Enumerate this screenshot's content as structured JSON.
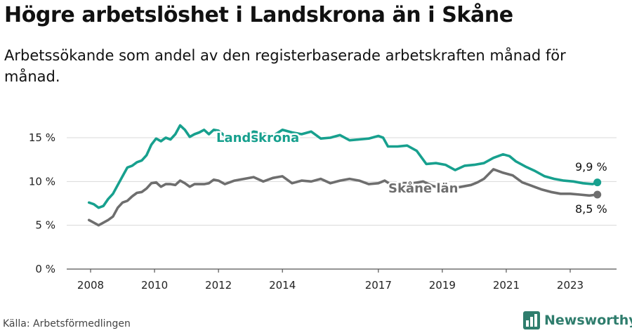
{
  "title": "Högre arbetslöshet i Landskrona än i Skåne",
  "subtitle": "Arbetssökande som andel av den registerbaserade arbetskraften månad för månad.",
  "source": "Källa: Arbetsförmedlingen",
  "brand": {
    "name": "Newsworthy",
    "icon": "newsworthy-logo-icon",
    "color": "#2f7d6d"
  },
  "colors": {
    "landskrona": "#17a08e",
    "skane": "#6e6e6e",
    "grid": "#d9d9d9",
    "axis": "#555555"
  },
  "chart_data": {
    "type": "line",
    "title": "Högre arbetslöshet i Landskrona än i Skåne",
    "xlabel": "",
    "ylabel": "",
    "xlim": [
      2007.6,
      2024.8
    ],
    "ylim": [
      0,
      16.5
    ],
    "yticks": [
      0,
      5,
      10,
      15
    ],
    "ytick_labels": [
      "0 %",
      "5 %",
      "10 %",
      "15 %"
    ],
    "xticks": [
      2008,
      2010,
      2012,
      2014,
      2017,
      2019,
      2021,
      2023
    ],
    "xtick_labels": [
      "2008",
      "2010",
      "2012",
      "2014",
      "2017",
      "2019",
      "2021",
      "2023"
    ],
    "grid": true,
    "series": [
      {
        "name": "Landskrona",
        "end_label": "9,9 %",
        "x": [
          2007.95,
          2008.1,
          2008.25,
          2008.4,
          2008.55,
          2008.7,
          2008.85,
          2009.0,
          2009.15,
          2009.3,
          2009.45,
          2009.6,
          2009.75,
          2009.9,
          2010.05,
          2010.2,
          2010.35,
          2010.5,
          2010.65,
          2010.8,
          2010.95,
          2011.1,
          2011.25,
          2011.4,
          2011.55,
          2011.7,
          2011.85,
          2012.0,
          2012.2,
          2012.5,
          2012.8,
          2013.1,
          2013.4,
          2013.7,
          2014.0,
          2014.3,
          2014.6,
          2014.9,
          2015.2,
          2015.5,
          2015.8,
          2016.1,
          2016.4,
          2016.7,
          2017.0,
          2017.15,
          2017.3,
          2017.6,
          2017.9,
          2018.2,
          2018.5,
          2018.8,
          2019.1,
          2019.4,
          2019.7,
          2020.0,
          2020.3,
          2020.6,
          2020.9,
          2021.1,
          2021.3,
          2021.6,
          2021.9,
          2022.2,
          2022.5,
          2022.8,
          2023.1,
          2023.4,
          2023.7,
          2023.85
        ],
        "values": [
          7.6,
          7.4,
          7.0,
          7.2,
          8.0,
          8.6,
          9.6,
          10.6,
          11.6,
          11.8,
          12.2,
          12.4,
          13.0,
          14.2,
          14.9,
          14.6,
          15.0,
          14.8,
          15.4,
          16.4,
          15.9,
          15.1,
          15.4,
          15.6,
          15.9,
          15.4,
          15.9,
          15.8,
          15.2,
          15.0,
          15.3,
          15.7,
          15.5,
          15.2,
          15.9,
          15.6,
          15.4,
          15.7,
          14.9,
          15.0,
          15.3,
          14.7,
          14.8,
          14.9,
          15.2,
          15.0,
          14.0,
          14.0,
          14.1,
          13.5,
          12.0,
          12.1,
          11.9,
          11.3,
          11.8,
          11.9,
          12.1,
          12.7,
          13.1,
          12.9,
          12.3,
          11.7,
          11.2,
          10.6,
          10.3,
          10.1,
          10.0,
          9.8,
          9.7,
          9.9
        ]
      },
      {
        "name": "Skåne län",
        "end_label": "8,5 %",
        "x": [
          2007.95,
          2008.1,
          2008.25,
          2008.4,
          2008.55,
          2008.7,
          2008.85,
          2009.0,
          2009.15,
          2009.3,
          2009.45,
          2009.6,
          2009.75,
          2009.9,
          2010.05,
          2010.2,
          2010.35,
          2010.5,
          2010.65,
          2010.8,
          2010.95,
          2011.1,
          2011.25,
          2011.4,
          2011.55,
          2011.7,
          2011.85,
          2012.0,
          2012.2,
          2012.5,
          2012.8,
          2013.1,
          2013.4,
          2013.7,
          2014.0,
          2014.3,
          2014.6,
          2014.9,
          2015.2,
          2015.5,
          2015.8,
          2016.1,
          2016.4,
          2016.7,
          2017.0,
          2017.2,
          2017.5,
          2017.8,
          2018.1,
          2018.4,
          2018.7,
          2019.0,
          2019.3,
          2019.6,
          2019.9,
          2020.1,
          2020.3,
          2020.6,
          2020.9,
          2021.2,
          2021.5,
          2021.8,
          2022.1,
          2022.4,
          2022.7,
          2023.0,
          2023.3,
          2023.6,
          2023.85
        ],
        "values": [
          5.6,
          5.3,
          5.0,
          5.3,
          5.6,
          6.0,
          7.0,
          7.6,
          7.8,
          8.3,
          8.7,
          8.8,
          9.2,
          9.8,
          9.9,
          9.4,
          9.7,
          9.7,
          9.6,
          10.1,
          9.8,
          9.4,
          9.7,
          9.7,
          9.7,
          9.8,
          10.2,
          10.1,
          9.7,
          10.1,
          10.3,
          10.5,
          10.0,
          10.4,
          10.6,
          9.8,
          10.1,
          10.0,
          10.3,
          9.8,
          10.1,
          10.3,
          10.1,
          9.7,
          9.8,
          10.1,
          9.4,
          9.8,
          9.8,
          10.0,
          9.5,
          9.2,
          9.2,
          9.4,
          9.6,
          9.9,
          10.3,
          11.4,
          11.0,
          10.7,
          9.9,
          9.5,
          9.1,
          8.8,
          8.6,
          8.6,
          8.5,
          8.4,
          8.5
        ]
      }
    ]
  }
}
